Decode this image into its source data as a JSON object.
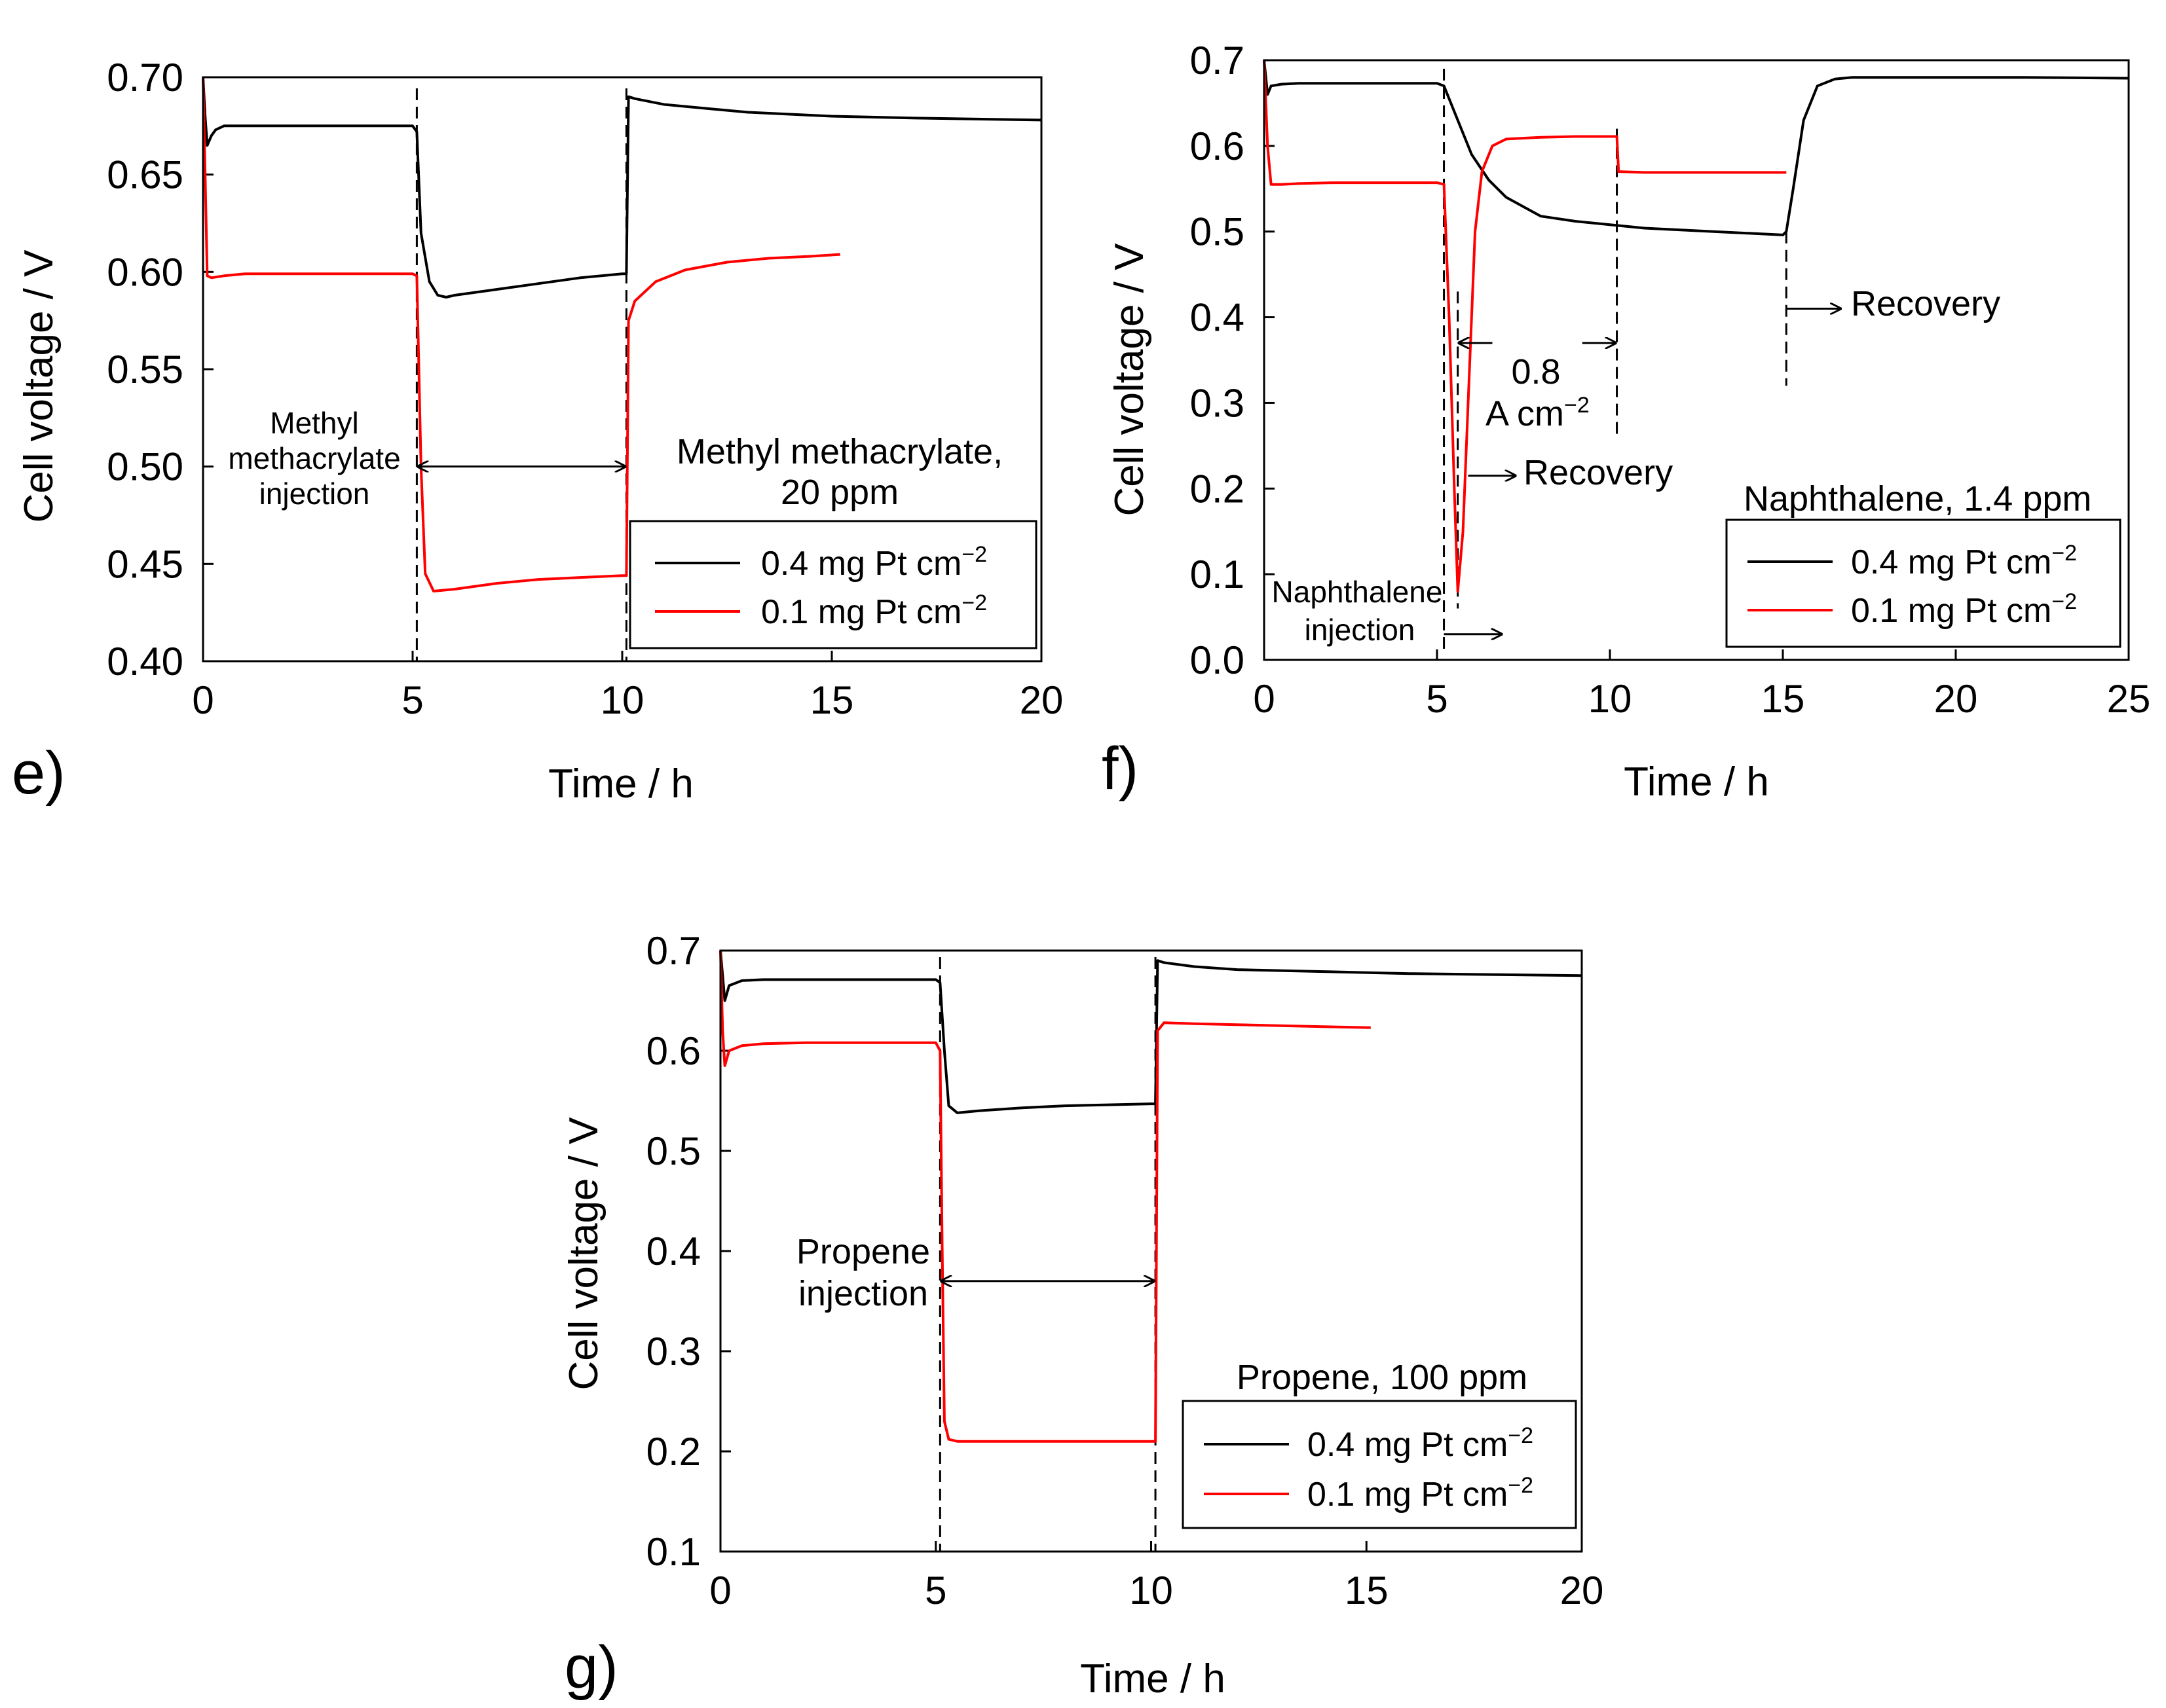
{
  "chart_data": [
    {
      "id": "e",
      "type": "line",
      "panel_label": "e)",
      "xlabel": "Time / h",
      "ylabel": "Cell voltage / V",
      "xlim": [
        0,
        20
      ],
      "ylim": [
        0.4,
        0.7
      ],
      "xticks": [
        0,
        5,
        10,
        15,
        20
      ],
      "yticks": [
        0.4,
        0.45,
        0.5,
        0.55,
        0.6,
        0.65,
        0.7
      ],
      "ytick_labels": [
        "0.40",
        "0.45",
        "0.50",
        "0.55",
        "0.60",
        "0.65",
        "0.70"
      ],
      "xtick_labels": [
        "0",
        "5",
        "10",
        "15",
        "20"
      ],
      "title": "Methyl methacrylate, 20 ppm",
      "title_lines": [
        "Methyl methacrylate,",
        "20 ppm"
      ],
      "injection_label": [
        "Methyl",
        "methacrylate",
        "injection"
      ],
      "vlines": [
        5.1,
        10.1
      ],
      "arrows": [
        {
          "from": 5.1,
          "to": 10.1,
          "y": 0.5
        }
      ],
      "legend": {
        "position": "bottom-right",
        "entries": [
          "0.4 mg Pt cm",
          "0.1 mg Pt cm"
        ],
        "superscript": "−2"
      },
      "series": [
        {
          "name": "0.4 mg Pt cm−2",
          "color": "#000000",
          "x": [
            0,
            0.05,
            0.1,
            0.2,
            0.3,
            0.5,
            1,
            2,
            3,
            4,
            5,
            5.1,
            5.2,
            5.4,
            5.6,
            5.8,
            6,
            7,
            8,
            9,
            10,
            10.1,
            10.15,
            10.3,
            11,
            12,
            13,
            14,
            15,
            17,
            20
          ],
          "y": [
            0.7,
            0.68,
            0.665,
            0.67,
            0.673,
            0.675,
            0.675,
            0.675,
            0.675,
            0.675,
            0.675,
            0.672,
            0.62,
            0.595,
            0.588,
            0.587,
            0.588,
            0.591,
            0.594,
            0.597,
            0.599,
            0.599,
            0.69,
            0.689,
            0.686,
            0.684,
            0.682,
            0.681,
            0.68,
            0.679,
            0.678
          ]
        },
        {
          "name": "0.1 mg Pt cm−2",
          "color": "#ff0000",
          "x": [
            0,
            0.05,
            0.1,
            0.2,
            0.5,
            1,
            2,
            3,
            4,
            5,
            5.1,
            5.2,
            5.3,
            5.5,
            6,
            7,
            8,
            9,
            10,
            10.1,
            10.15,
            10.3,
            10.8,
            11.5,
            12.5,
            13.5,
            14.5,
            15.2
          ],
          "y": [
            0.7,
            0.65,
            0.598,
            0.597,
            0.598,
            0.599,
            0.599,
            0.599,
            0.599,
            0.599,
            0.598,
            0.5,
            0.445,
            0.436,
            0.437,
            0.44,
            0.442,
            0.443,
            0.444,
            0.444,
            0.575,
            0.585,
            0.595,
            0.601,
            0.605,
            0.607,
            0.608,
            0.609
          ]
        }
      ]
    },
    {
      "id": "f",
      "type": "line",
      "panel_label": "f)",
      "xlabel": "Time / h",
      "ylabel": "Cell voltage / V",
      "xlim": [
        0,
        25
      ],
      "ylim": [
        0.0,
        0.7
      ],
      "xticks": [
        0,
        5,
        10,
        15,
        20,
        25
      ],
      "yticks": [
        0.0,
        0.1,
        0.2,
        0.3,
        0.4,
        0.5,
        0.6,
        0.7
      ],
      "ytick_labels": [
        "0.0",
        "0.1",
        "0.2",
        "0.3",
        "0.4",
        "0.5",
        "0.6",
        "0.7"
      ],
      "xtick_labels": [
        "0",
        "5",
        "10",
        "15",
        "20",
        "25"
      ],
      "title": "Naphthalene, 1.4 ppm",
      "injection_label": [
        "Naphthalene",
        "injection"
      ],
      "current_label": [
        "0.8",
        "A cm"
      ],
      "current_superscript": "−2",
      "recovery_label": "Recovery",
      "vlines": [
        5.2,
        5.6,
        10.2,
        15.1
      ],
      "legend": {
        "position": "bottom-right",
        "entries": [
          "0.4 mg Pt cm",
          "0.1 mg Pt cm"
        ],
        "superscript": "−2"
      },
      "series": [
        {
          "name": "0.4 mg Pt cm−2",
          "color": "#000000",
          "x": [
            0,
            0.1,
            0.2,
            0.5,
            1,
            2,
            3,
            4,
            5,
            5.2,
            5.5,
            6,
            6.5,
            7,
            8,
            9,
            10,
            11,
            12,
            13,
            14,
            15,
            15.1,
            15.3,
            15.6,
            16,
            16.5,
            17,
            18,
            20,
            22,
            25
          ],
          "y": [
            0.7,
            0.66,
            0.67,
            0.672,
            0.673,
            0.673,
            0.673,
            0.673,
            0.673,
            0.67,
            0.64,
            0.59,
            0.56,
            0.54,
            0.518,
            0.512,
            0.508,
            0.504,
            0.502,
            0.5,
            0.498,
            0.496,
            0.5,
            0.55,
            0.63,
            0.67,
            0.678,
            0.68,
            0.68,
            0.68,
            0.68,
            0.679
          ]
        },
        {
          "name": "0.1 mg Pt cm−2",
          "color": "#ff0000",
          "x": [
            0,
            0.1,
            0.2,
            0.5,
            1,
            2,
            3,
            4,
            5,
            5.2,
            5.35,
            5.5,
            5.6,
            5.75,
            5.9,
            6.1,
            6.3,
            6.6,
            7,
            8,
            9,
            10,
            10.2,
            10.25,
            11,
            12,
            13,
            14,
            15.1
          ],
          "y": [
            0.7,
            0.6,
            0.555,
            0.555,
            0.556,
            0.557,
            0.557,
            0.557,
            0.557,
            0.555,
            0.4,
            0.2,
            0.08,
            0.15,
            0.3,
            0.5,
            0.57,
            0.6,
            0.608,
            0.61,
            0.611,
            0.611,
            0.611,
            0.57,
            0.569,
            0.569,
            0.569,
            0.569,
            0.569
          ]
        }
      ]
    },
    {
      "id": "g",
      "type": "line",
      "panel_label": "g)",
      "xlabel": "Time / h",
      "ylabel": "Cell voltage / V",
      "xlim": [
        0,
        20
      ],
      "ylim": [
        0.1,
        0.7
      ],
      "xticks": [
        0,
        5,
        10,
        15,
        20
      ],
      "yticks": [
        0.1,
        0.2,
        0.3,
        0.4,
        0.5,
        0.6,
        0.7
      ],
      "ytick_labels": [
        "0.1",
        "0.2",
        "0.3",
        "0.4",
        "0.5",
        "0.6",
        "0.7"
      ],
      "xtick_labels": [
        "0",
        "5",
        "10",
        "15",
        "20"
      ],
      "title": "Propene, 100 ppm",
      "injection_label": [
        "Propene",
        "injection"
      ],
      "vlines": [
        5.1,
        10.1
      ],
      "arrows": [
        {
          "from": 5.1,
          "to": 10.1,
          "y": 0.37
        }
      ],
      "legend": {
        "position": "bottom-right",
        "entries": [
          "0.4 mg Pt cm",
          "0.1 mg Pt cm"
        ],
        "superscript": "−2"
      },
      "series": [
        {
          "name": "0.4 mg Pt cm−2",
          "color": "#000000",
          "x": [
            0,
            0.1,
            0.2,
            0.5,
            1,
            2,
            3,
            4,
            5,
            5.1,
            5.2,
            5.3,
            5.5,
            6,
            7,
            8,
            9,
            10,
            10.1,
            10.15,
            10.3,
            11,
            12,
            14,
            16,
            18,
            20
          ],
          "y": [
            0.7,
            0.65,
            0.665,
            0.67,
            0.671,
            0.671,
            0.671,
            0.671,
            0.671,
            0.668,
            0.6,
            0.545,
            0.538,
            0.54,
            0.543,
            0.545,
            0.546,
            0.547,
            0.547,
            0.69,
            0.688,
            0.684,
            0.681,
            0.679,
            0.677,
            0.676,
            0.675
          ]
        },
        {
          "name": "0.1 mg Pt cm−2",
          "color": "#ff0000",
          "x": [
            0,
            0.05,
            0.1,
            0.2,
            0.5,
            1,
            2,
            3,
            4,
            5,
            5.1,
            5.15,
            5.2,
            5.3,
            5.5,
            6,
            7,
            8,
            9,
            10,
            10.1,
            10.15,
            10.3,
            11,
            12,
            13,
            14,
            15.1
          ],
          "y": [
            0.7,
            0.62,
            0.585,
            0.6,
            0.605,
            0.607,
            0.608,
            0.608,
            0.608,
            0.608,
            0.6,
            0.4,
            0.23,
            0.212,
            0.21,
            0.21,
            0.21,
            0.21,
            0.21,
            0.21,
            0.21,
            0.62,
            0.628,
            0.627,
            0.626,
            0.625,
            0.624,
            0.623
          ]
        }
      ]
    }
  ]
}
